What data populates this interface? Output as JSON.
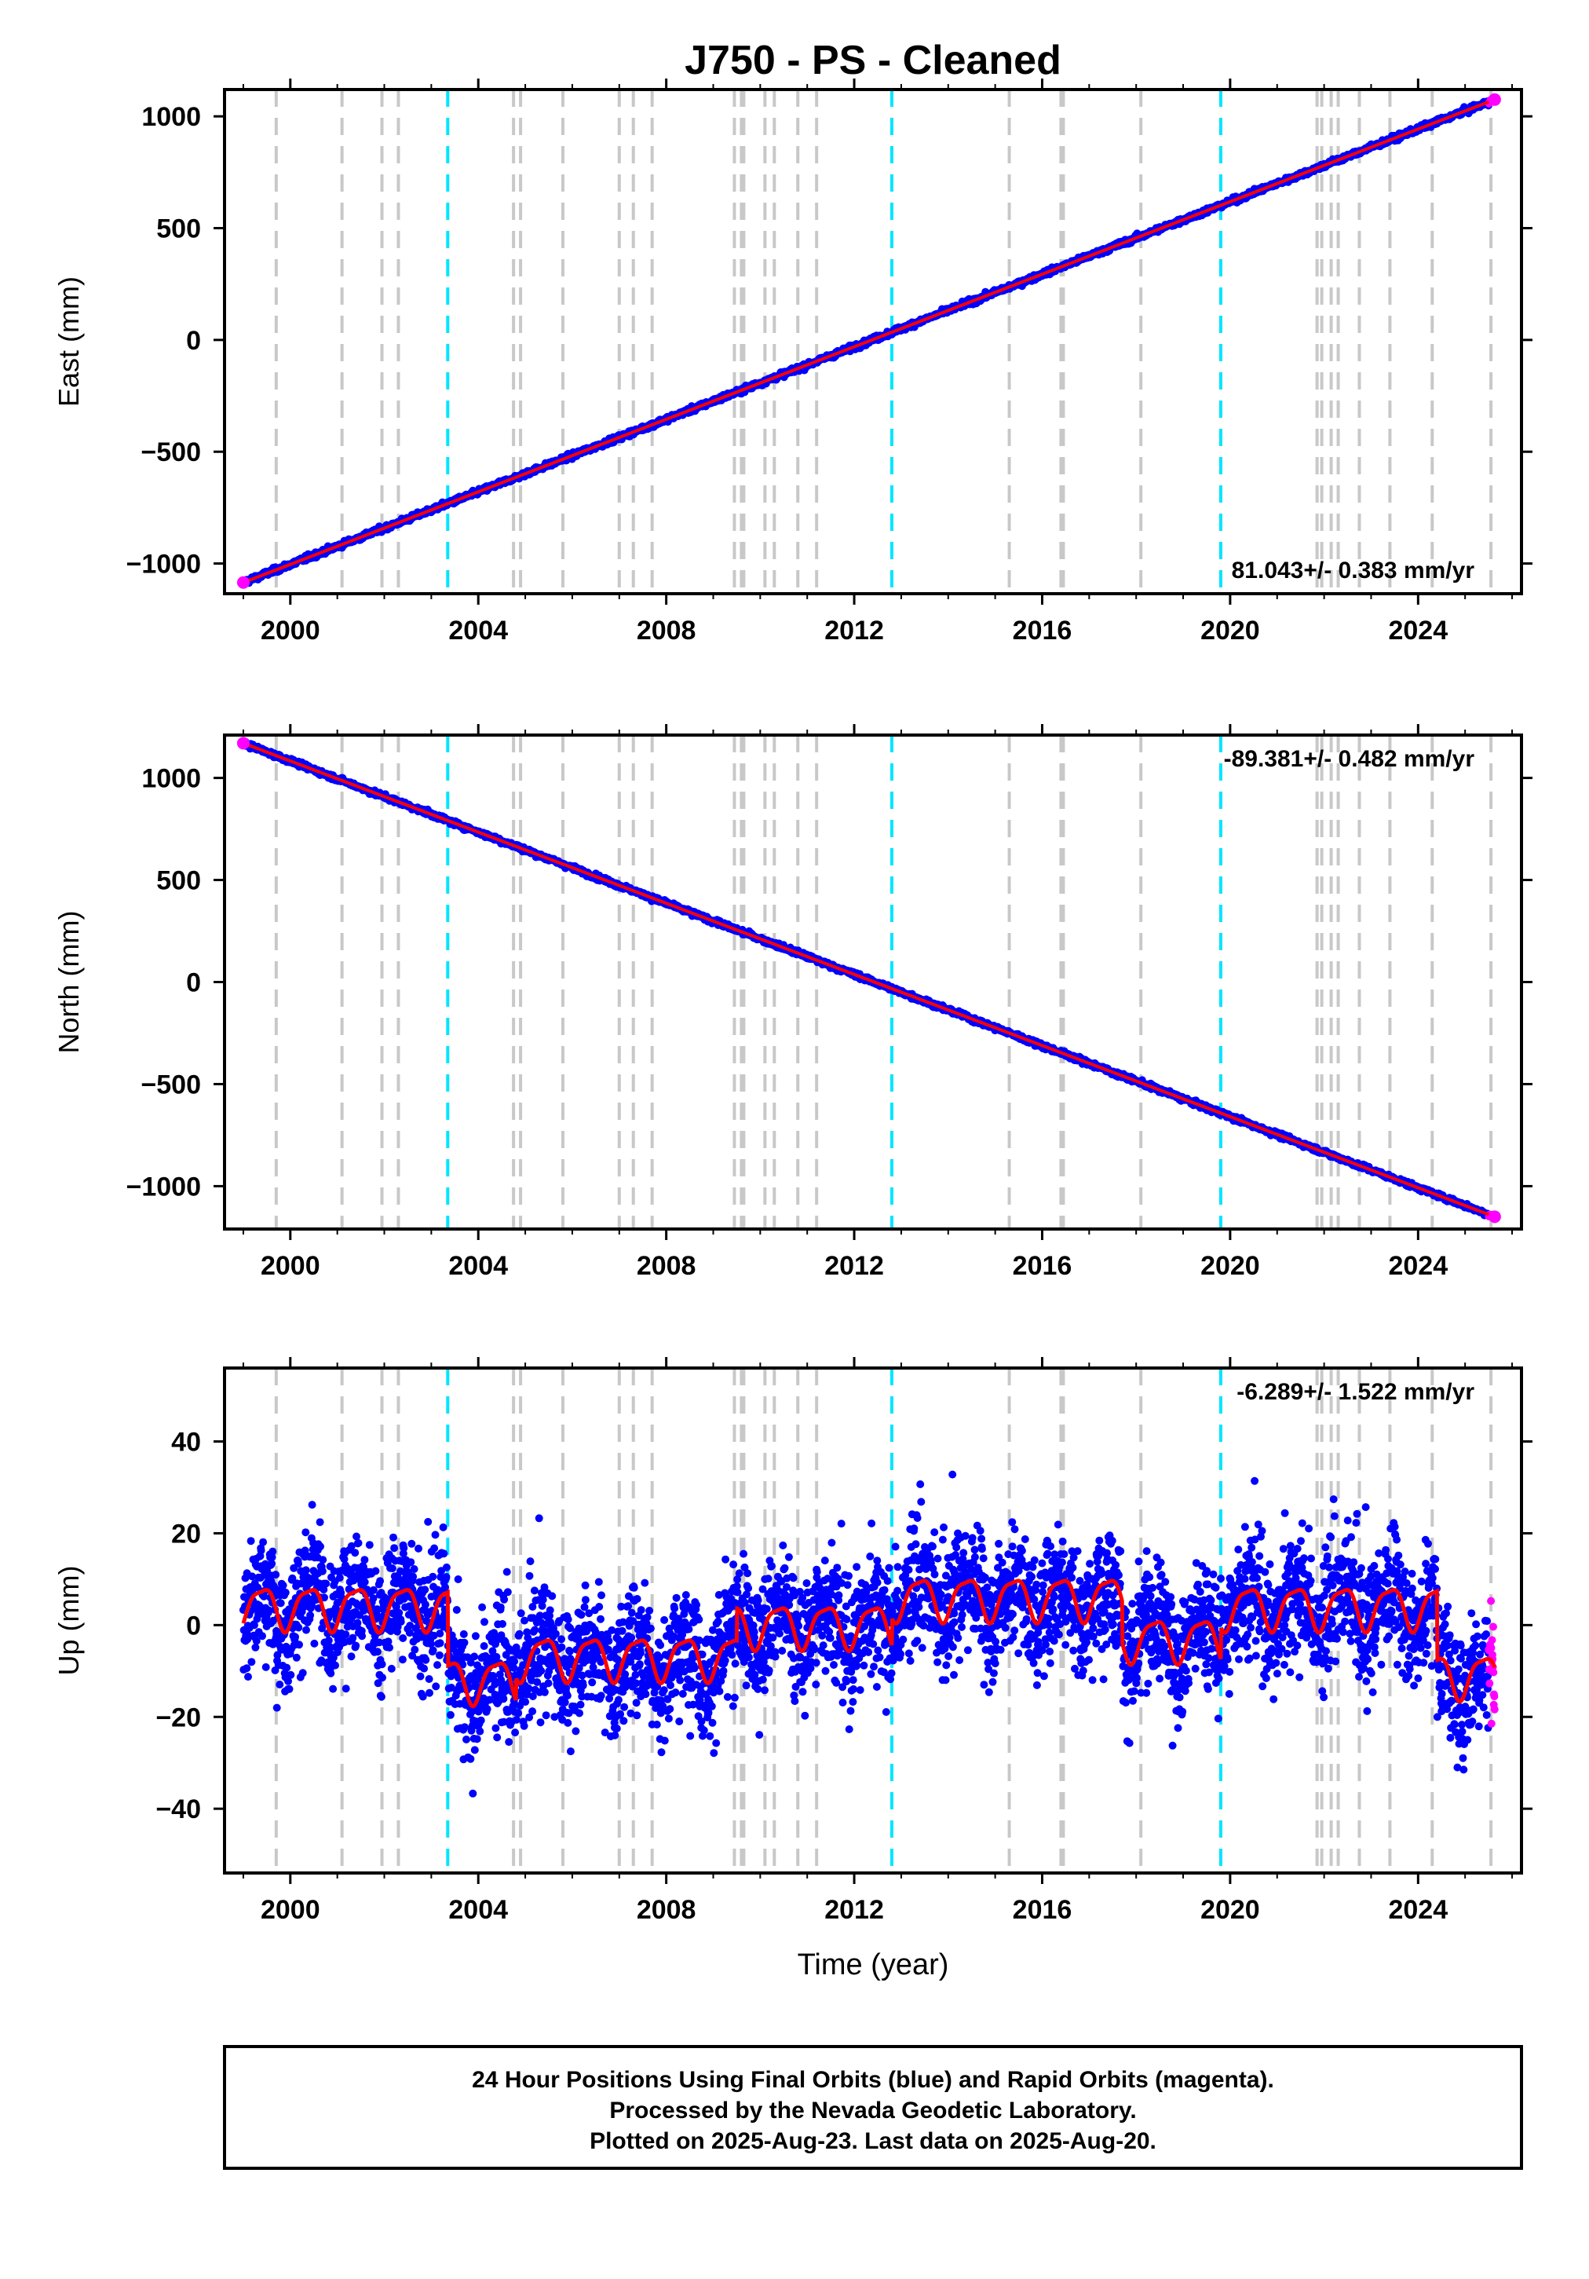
{
  "title": "J750  - PS - Cleaned",
  "colors": {
    "final_orbits": "#0000ff",
    "rapid_orbits": "#ff00ff",
    "model": "#ff0000",
    "equipment_change": "#c8c8c8",
    "earthquake": "#00e5ff"
  },
  "x_axis": {
    "label": "Time (year)",
    "range": [
      1998.6,
      2026.2
    ],
    "ticks": [
      "2000",
      "2004",
      "2008",
      "2012",
      "2016",
      "2020",
      "2024"
    ]
  },
  "footer": {
    "line1": "24 Hour Positions Using Final Orbits (blue) and Rapid Orbits (magenta).",
    "line2": "Processed by the Nevada Geodetic Laboratory.",
    "line3": "Plotted on 2025-Aug-23. Last data on 2025-Aug-20."
  },
  "chart_data": [
    {
      "type": "scatter",
      "component": "east",
      "ylabel": "East (mm)",
      "ylim": [
        -1135,
        1120
      ],
      "yticks": [
        "1000",
        "500",
        "0",
        "−500",
        "−1000"
      ],
      "rate_text": "81.043+/- 0.383 mm/yr",
      "rate_position": "bottom-right",
      "start": {
        "x": 1999.0,
        "y": -1085
      },
      "end": {
        "x": 2025.63,
        "y": 1075
      },
      "noise_mm": 6,
      "series": [
        {
          "name": "Final Orbits (blue)",
          "color": "#0000ff"
        },
        {
          "name": "Rapid Orbits (magenta)",
          "color": "#ff00ff"
        },
        {
          "name": "Model",
          "color": "#ff0000"
        }
      ]
    },
    {
      "type": "scatter",
      "component": "north",
      "ylabel": "North (mm)",
      "ylim": [
        -1210,
        1210
      ],
      "yticks": [
        "1000",
        "500",
        "0",
        "−500",
        "−1000"
      ],
      "rate_text": "-89.381+/- 0.482 mm/yr",
      "rate_position": "top-right",
      "start": {
        "x": 1999.0,
        "y": 1170
      },
      "end": {
        "x": 2025.63,
        "y": -1150
      },
      "noise_mm": 6,
      "series": [
        {
          "name": "Final Orbits (blue)",
          "color": "#0000ff"
        },
        {
          "name": "Rapid Orbits (magenta)",
          "color": "#ff00ff"
        },
        {
          "name": "Model",
          "color": "#ff0000"
        }
      ]
    },
    {
      "type": "scatter",
      "component": "up",
      "ylabel": "Up (mm)",
      "ylim": [
        -54,
        56
      ],
      "yticks": [
        "40",
        "20",
        "0",
        "−20",
        "−40"
      ],
      "rate_text": "-6.289+/- 1.522 mm/yr",
      "rate_position": "top-right",
      "seasonal_amplitude_mm": 4.5,
      "noise_mm": 6.5,
      "offset_segments": [
        {
          "x0": 1999.0,
          "x1": 2003.35,
          "level": 4
        },
        {
          "x0": 2003.35,
          "x1": 2004.8,
          "level": -12
        },
        {
          "x0": 2004.8,
          "x1": 2009.5,
          "level": -7
        },
        {
          "x0": 2009.5,
          "x1": 2012.8,
          "level": 0
        },
        {
          "x0": 2012.8,
          "x1": 2017.7,
          "level": 6
        },
        {
          "x0": 2017.7,
          "x1": 2019.8,
          "level": -3
        },
        {
          "x0": 2019.8,
          "x1": 2024.4,
          "level": 4
        },
        {
          "x0": 2024.4,
          "x1": 2025.63,
          "level": -11
        }
      ],
      "series": [
        {
          "name": "Final Orbits (blue)",
          "color": "#0000ff"
        },
        {
          "name": "Rapid Orbits (magenta)",
          "color": "#ff00ff"
        },
        {
          "name": "Model",
          "color": "#ff0000"
        }
      ]
    }
  ],
  "equipment_changes": [
    1999.7,
    2001.1,
    2001.95,
    2002.3,
    2004.75,
    2004.9,
    2005.8,
    2007.0,
    2007.3,
    2007.7,
    2009.45,
    2009.6,
    2009.65,
    2010.1,
    2010.3,
    2010.8,
    2011.2,
    2015.3,
    2016.4,
    2016.45,
    2018.1,
    2021.85,
    2021.95,
    2022.15,
    2022.3,
    2022.75,
    2023.4,
    2024.3,
    2025.55
  ],
  "earthquakes": [
    2003.35,
    2012.8,
    2019.8
  ]
}
